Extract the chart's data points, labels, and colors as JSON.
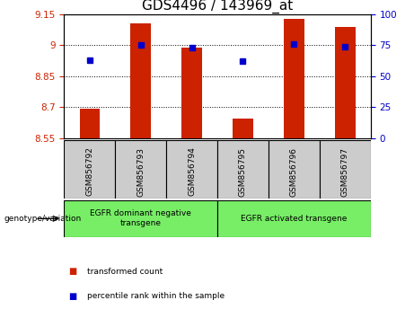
{
  "title": "GDS4496 / 143969_at",
  "samples": [
    "GSM856792",
    "GSM856793",
    "GSM856794",
    "GSM856795",
    "GSM856796",
    "GSM856797"
  ],
  "bar_values": [
    8.695,
    9.105,
    8.99,
    8.645,
    9.13,
    9.09
  ],
  "percentile_values": [
    63,
    75,
    73,
    62,
    76,
    74
  ],
  "ylim_left": [
    8.55,
    9.15
  ],
  "ylim_right": [
    0,
    100
  ],
  "yticks_left": [
    8.55,
    8.7,
    8.85,
    9.0,
    9.15
  ],
  "yticks_right": [
    0,
    25,
    50,
    75,
    100
  ],
  "ytick_labels_left": [
    "8.55",
    "8.7",
    "8.85",
    "9",
    "9.15"
  ],
  "ytick_labels_right": [
    "0",
    "25",
    "50",
    "75",
    "100"
  ],
  "bar_color": "#cc2200",
  "dot_color": "#0000cc",
  "group1_label": "EGFR dominant negative\ntransgene",
  "group2_label": "EGFR activated transgene",
  "group_bg_color": "#77ee66",
  "sample_bg_color": "#cccccc",
  "legend_bar_label": "transformed count",
  "legend_dot_label": "percentile rank within the sample",
  "xlabel_label": "genotype/variation",
  "bar_bottom": 8.55,
  "bar_width": 0.4,
  "title_fontsize": 11,
  "tick_fontsize": 7.5,
  "label_fontsize": 7
}
